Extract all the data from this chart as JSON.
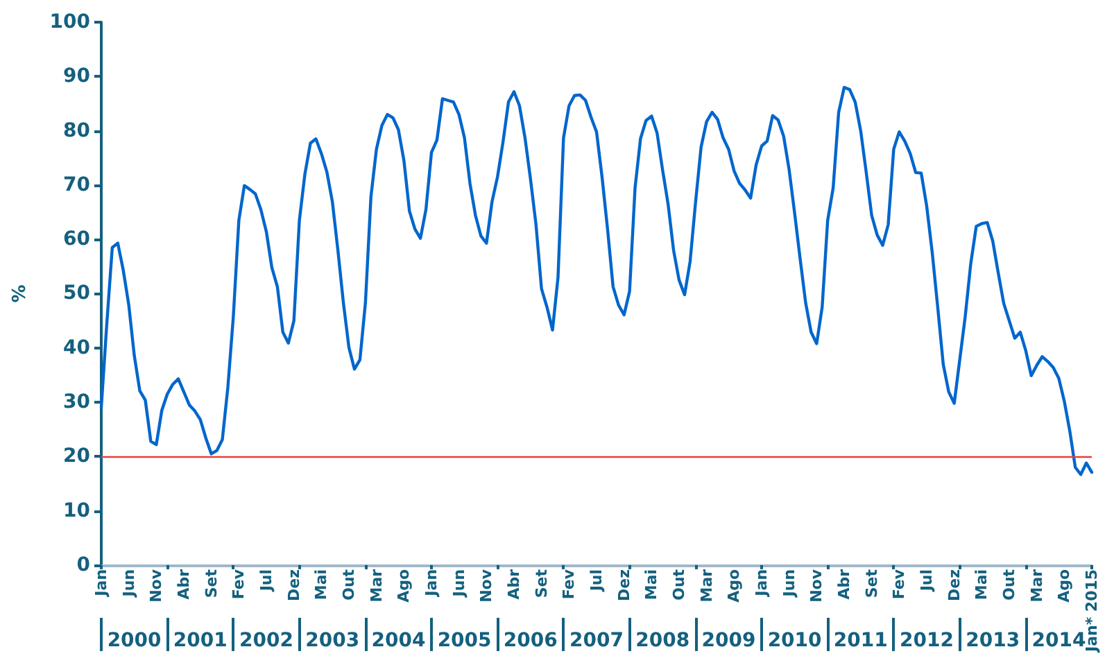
{
  "chart_data": {
    "type": "line",
    "ylabel": "%",
    "color": "#0066cc",
    "marker": "none",
    "line_style": "solid",
    "grid": false,
    "ylim": [
      0,
      100
    ],
    "yticks": [
      0,
      10,
      20,
      30,
      40,
      50,
      60,
      70,
      80,
      90,
      100
    ],
    "categories": [
      "Jan",
      null,
      null,
      null,
      null,
      "Jun",
      null,
      null,
      null,
      null,
      "Nov",
      null,
      null,
      null,
      null,
      "Abr",
      null,
      null,
      null,
      null,
      "Set",
      null,
      null,
      null,
      null,
      "Fev",
      null,
      null,
      null,
      null,
      "Jul",
      null,
      null,
      null,
      null,
      "Dez",
      null,
      null,
      null,
      null,
      "Mai",
      null,
      null,
      null,
      null,
      "Out",
      null,
      null,
      null,
      null,
      "Mar",
      null,
      null,
      null,
      null,
      "Ago",
      null,
      null,
      null,
      null,
      "Jan",
      null,
      null,
      null,
      null,
      "Jun",
      null,
      null,
      null,
      null,
      "Nov",
      null,
      null,
      null,
      null,
      "Abr",
      null,
      null,
      null,
      null,
      "Set",
      null,
      null,
      null,
      null,
      "Fev",
      null,
      null,
      null,
      null,
      "Jul",
      null,
      null,
      null,
      null,
      "Dez",
      null,
      null,
      null,
      null,
      "Mai",
      null,
      null,
      null,
      null,
      "Out",
      null,
      null,
      null,
      null,
      "Mar",
      null,
      null,
      null,
      null,
      "Ago",
      null,
      null,
      null,
      null,
      "Jan",
      null,
      null,
      null,
      null,
      "Jun",
      null,
      null,
      null,
      null,
      "Nov",
      null,
      null,
      null,
      null,
      "Abr",
      null,
      null,
      null,
      null,
      "Set",
      null,
      null,
      null,
      null,
      "Fev",
      null,
      null,
      null,
      null,
      "Jul",
      null,
      null,
      null,
      null,
      "Dez",
      null,
      null,
      null,
      null,
      "Mai",
      null,
      null,
      null,
      null,
      "Out",
      null,
      null,
      null,
      null,
      "Mar",
      null,
      null,
      null,
      null,
      "Ago",
      null,
      null,
      null,
      null,
      "Jan* 2015"
    ],
    "values": [
      29,
      44.4,
      58.5,
      59.3,
      54.3,
      47.9,
      38.6,
      32.1,
      30.4,
      22.8,
      22.2,
      28.5,
      31.5,
      33.3,
      34.3,
      31.9,
      29.5,
      28.4,
      26.8,
      23.4,
      20.5,
      21.1,
      23.1,
      32.7,
      45.8,
      63.5,
      69.9,
      69.2,
      68.4,
      65.5,
      61.4,
      54.8,
      51.3,
      42.9,
      40.9,
      45,
      63.5,
      72,
      77.7,
      78.5,
      75.8,
      72.4,
      66.9,
      58,
      48.3,
      40.1,
      36.1,
      37.8,
      48.3,
      67.8,
      76.6,
      81,
      83,
      82.4,
      80.2,
      74.5,
      65.2,
      61.9,
      60.2,
      65.5,
      76,
      78.3,
      85.9,
      85.6,
      85.3,
      83,
      78.7,
      70.3,
      64.4,
      60.6,
      59.3,
      66.9,
      71.5,
      77.9,
      85.3,
      87.2,
      84.6,
      78.7,
      71.1,
      62.7,
      50.9,
      47.5,
      43.3,
      53,
      78.7,
      84.6,
      86.5,
      86.6,
      85.6,
      82.5,
      79.8,
      71.5,
      61.9,
      51.3,
      47.9,
      46.1,
      50.4,
      69.5,
      78.6,
      81.9,
      82.7,
      79.6,
      72.8,
      66.5,
      58,
      52.5,
      49.8,
      55.9,
      66.9,
      77,
      81.7,
      83.4,
      82.1,
      78.7,
      76.6,
      72.6,
      70.3,
      69.1,
      67.6,
      73.7,
      77.2,
      78.1,
      82.8,
      82,
      79,
      72.8,
      64.8,
      56.4,
      48.3,
      42.9,
      40.8,
      47.5,
      63.5,
      69.5,
      83.4,
      88,
      87.6,
      85.3,
      80,
      72.4,
      64.4,
      60.8,
      58.9,
      62.7,
      76.6,
      79.8,
      78.1,
      75.8,
      72.3,
      72.2,
      66.1,
      57.6,
      47.5,
      37,
      31.9,
      29.8,
      37.8,
      45.8,
      55.5,
      62.4,
      62.9,
      63.1,
      59.7,
      53.8,
      48.2,
      45,
      41.8,
      42.9,
      39.5,
      34.9,
      36.8,
      38.4,
      37.5,
      36.4,
      34.4,
      30.2,
      24.7,
      18,
      16.7,
      18.8,
      17.1
    ],
    "ref_lines": [
      {
        "axis": "y",
        "value": 20,
        "color": "#e8403a"
      }
    ],
    "annotations": [
      "2000",
      "2001",
      "2002",
      "2003",
      "2004",
      "2005",
      "2006",
      "2007",
      "2008",
      "2009",
      "2010",
      "2011",
      "2012",
      "2013",
      "2014"
    ]
  }
}
